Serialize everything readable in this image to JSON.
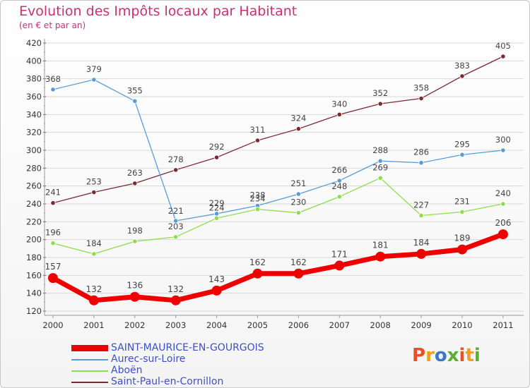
{
  "header": {
    "title": "Evolution des Impôts locaux par Habitant",
    "subtitle": "(en € et par an)"
  },
  "logo": {
    "text": "Proxiti",
    "colors": [
      "#e8502a",
      "#f0a020",
      "#3c78c8",
      "#58b030",
      "#e8502a",
      "#f0a020",
      "#58b030"
    ]
  },
  "chart_data": {
    "type": "line",
    "x": [
      "2000",
      "2001",
      "2002",
      "2003",
      "2004",
      "2005",
      "2006",
      "2007",
      "2008",
      "2009",
      "2010",
      "2011"
    ],
    "ylim": [
      120,
      420
    ],
    "yticks": [
      120,
      140,
      160,
      180,
      200,
      220,
      240,
      260,
      280,
      300,
      320,
      340,
      360,
      380,
      400,
      420
    ],
    "grid": "horizontal",
    "legend_position": "bottom-left",
    "series": [
      {
        "name": "SAINT-MAURICE-EN-GOURGOIS",
        "color": "#ee0000",
        "emphasis": true,
        "values": [
          157,
          132,
          136,
          132,
          143,
          162,
          162,
          171,
          181,
          184,
          189,
          206
        ]
      },
      {
        "name": "Aurec-sur-Loire",
        "color": "#5b9bd5",
        "values": [
          368,
          379,
          355,
          221,
          229,
          238,
          251,
          266,
          288,
          286,
          295,
          300
        ]
      },
      {
        "name": "Aboën",
        "color": "#90dc50",
        "values": [
          196,
          184,
          198,
          203,
          224,
          234,
          230,
          248,
          269,
          227,
          231,
          240
        ]
      },
      {
        "name": "Saint-Paul-en-Cornillon",
        "color": "#7a2a30",
        "values": [
          241,
          253,
          263,
          278,
          292,
          311,
          324,
          340,
          352,
          358,
          383,
          405
        ]
      }
    ]
  }
}
